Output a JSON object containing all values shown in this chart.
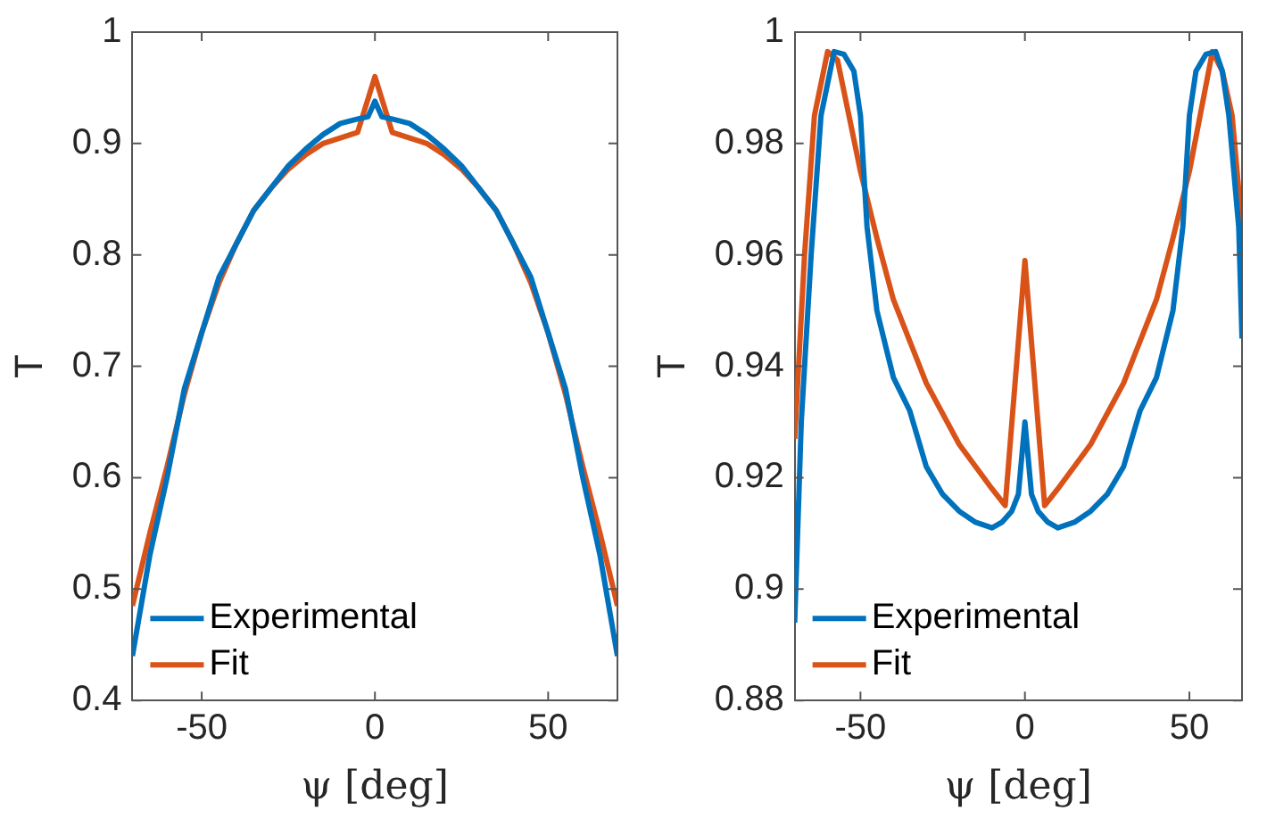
{
  "chart_data": [
    {
      "type": "line",
      "xlabel": "ψ [deg]",
      "ylabel": "T",
      "xlim": [
        -70,
        70
      ],
      "xticks": [
        -50,
        0,
        50
      ],
      "ylim": [
        0.4,
        1
      ],
      "yticks": [
        0.4,
        0.5,
        0.6,
        0.7,
        0.8,
        0.9,
        1
      ],
      "legend": "bottom left",
      "grid": false,
      "marker": "none",
      "line_style": "solid",
      "series": [
        {
          "name": "Experimental",
          "color": "#0072bd",
          "x": [
            -70,
            -65,
            -60,
            -55,
            -50,
            -45,
            -40,
            -35,
            -30,
            -25,
            -20,
            -15,
            -10,
            -5,
            -2,
            0,
            2,
            5,
            10,
            15,
            20,
            25,
            30,
            35,
            40,
            45,
            50,
            55,
            60,
            65,
            70
          ],
          "values": [
            0.44,
            0.53,
            0.6,
            0.68,
            0.73,
            0.78,
            0.81,
            0.84,
            0.86,
            0.88,
            0.895,
            0.908,
            0.918,
            0.922,
            0.924,
            0.938,
            0.924,
            0.922,
            0.918,
            0.908,
            0.895,
            0.88,
            0.86,
            0.84,
            0.81,
            0.78,
            0.73,
            0.68,
            0.6,
            0.53,
            0.44
          ]
        },
        {
          "name": "Fit",
          "color": "#d95319",
          "x": [
            -70,
            -65,
            -60,
            -55,
            -50,
            -45,
            -40,
            -35,
            -30,
            -25,
            -20,
            -15,
            -10,
            -5,
            0,
            5,
            10,
            15,
            20,
            25,
            30,
            35,
            40,
            45,
            50,
            55,
            60,
            65,
            70
          ],
          "values": [
            0.485,
            0.55,
            0.61,
            0.675,
            0.73,
            0.775,
            0.81,
            0.84,
            0.86,
            0.877,
            0.89,
            0.9,
            0.905,
            0.91,
            0.96,
            0.91,
            0.905,
            0.9,
            0.89,
            0.877,
            0.86,
            0.84,
            0.81,
            0.775,
            0.73,
            0.675,
            0.61,
            0.55,
            0.485
          ]
        }
      ]
    },
    {
      "type": "line",
      "xlabel": "ψ [deg]",
      "ylabel": "T",
      "xlim": [
        -70,
        66
      ],
      "xticks": [
        -50,
        0,
        50
      ],
      "ylim": [
        0.88,
        1
      ],
      "yticks": [
        0.88,
        0.9,
        0.92,
        0.94,
        0.96,
        0.98,
        1
      ],
      "legend": "bottom left",
      "grid": false,
      "marker": "none",
      "line_style": "solid",
      "series": [
        {
          "name": "Experimental",
          "color": "#0072bd",
          "x": [
            -70,
            -68,
            -65,
            -62,
            -58,
            -55,
            -52,
            -50,
            -48,
            -45,
            -40,
            -35,
            -30,
            -25,
            -20,
            -15,
            -10,
            -7,
            -4,
            -2,
            0,
            2,
            4,
            7,
            10,
            15,
            20,
            25,
            30,
            35,
            40,
            45,
            48,
            50,
            52,
            55,
            58,
            60,
            62,
            65,
            66
          ],
          "values": [
            0.894,
            0.93,
            0.96,
            0.985,
            0.9965,
            0.996,
            0.993,
            0.985,
            0.965,
            0.95,
            0.938,
            0.932,
            0.922,
            0.917,
            0.914,
            0.912,
            0.911,
            0.912,
            0.914,
            0.917,
            0.93,
            0.917,
            0.914,
            0.912,
            0.911,
            0.912,
            0.914,
            0.917,
            0.922,
            0.932,
            0.938,
            0.95,
            0.965,
            0.985,
            0.993,
            0.996,
            0.9965,
            0.993,
            0.985,
            0.965,
            0.945
          ]
        },
        {
          "name": "Fit",
          "color": "#d95319",
          "x": [
            -70,
            -67,
            -64,
            -60,
            -57,
            -50,
            -45,
            -40,
            -30,
            -20,
            -10,
            -6,
            0,
            6,
            10,
            20,
            30,
            40,
            45,
            50,
            57,
            60,
            63,
            66
          ],
          "values": [
            0.927,
            0.96,
            0.985,
            0.9965,
            0.995,
            0.975,
            0.963,
            0.952,
            0.937,
            0.926,
            0.918,
            0.915,
            0.959,
            0.915,
            0.918,
            0.926,
            0.937,
            0.952,
            0.963,
            0.975,
            0.9965,
            0.993,
            0.985,
            0.965
          ]
        }
      ]
    }
  ]
}
